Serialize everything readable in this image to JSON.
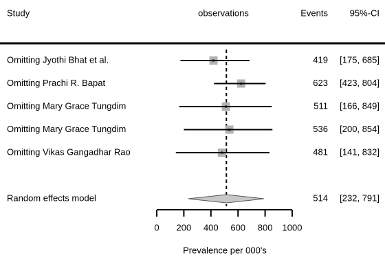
{
  "chart_data": {
    "type": "forest",
    "columns": {
      "study": "Study",
      "observations": "observations",
      "events": "Events",
      "ci": "95%-CI"
    },
    "categories": [
      "Omitting Jyothi Bhat et al.",
      "Omitting Prachi R. Bapat",
      "Omitting Mary Grace Tungdim",
      "Omitting Mary Grace Tungdim",
      "Omitting Vikas Gangadhar Rao"
    ],
    "values": [
      419,
      623,
      511,
      536,
      481
    ],
    "lower": [
      175,
      423,
      166,
      200,
      141
    ],
    "upper": [
      685,
      804,
      849,
      854,
      832
    ],
    "ci_labels": [
      "[175, 685]",
      "[423, 804]",
      "[166, 849]",
      "[200, 854]",
      "[141, 832]"
    ],
    "summary": {
      "name": "Random effects model",
      "value": 514,
      "lower": 232,
      "upper": 791,
      "ci_label": "[232, 791]"
    },
    "xlim": [
      0,
      1000
    ],
    "xticks": [
      0,
      200,
      400,
      600,
      800,
      1000
    ],
    "xlabel": "Prevalence per 000's",
    "color": "#b3b3b3"
  }
}
